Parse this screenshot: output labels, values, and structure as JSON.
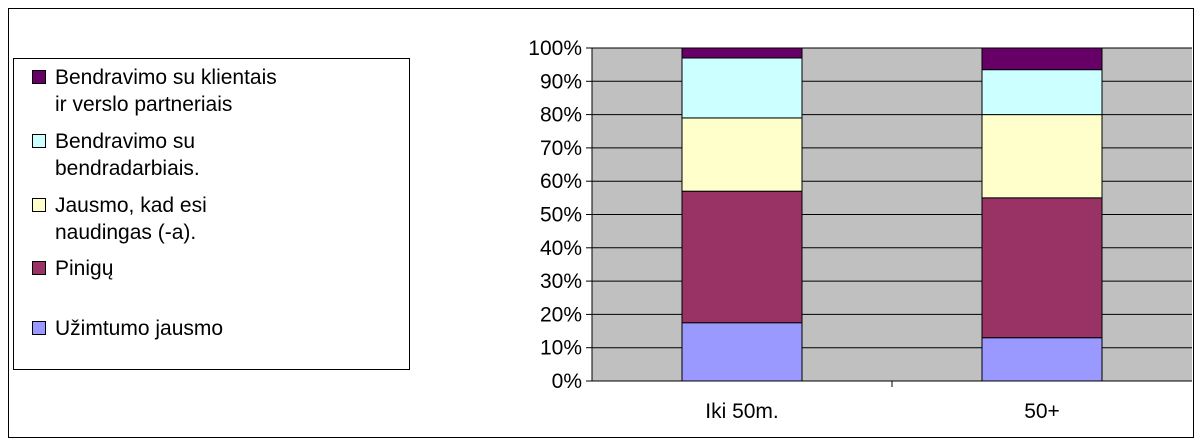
{
  "chart_data": {
    "type": "bar",
    "stacked": true,
    "percent_stacked": true,
    "categories": [
      "Iki 50m.",
      "50+"
    ],
    "series": [
      {
        "name": "Užimtumo jausmo",
        "color": "#9999ff",
        "values": [
          17.5,
          13
        ]
      },
      {
        "name": "Pinigų",
        "color": "#993366",
        "values": [
          39.5,
          42
        ]
      },
      {
        "name": "Jausmo, kad esi\nnaudingas (-a).",
        "color": "#ffffcc",
        "values": [
          22,
          25
        ]
      },
      {
        "name": "Bendravimo su\nbendradarbiais.",
        "color": "#ccffff",
        "values": [
          18,
          13.5
        ]
      },
      {
        "name": "Bendravimo su klientais\nir verslo partneriais",
        "color": "#660066",
        "values": [
          3,
          6.5
        ]
      }
    ],
    "y_ticks": [
      "0%",
      "10%",
      "20%",
      "30%",
      "40%",
      "50%",
      "60%",
      "70%",
      "80%",
      "90%",
      "100%"
    ],
    "ylim": [
      0,
      100
    ],
    "plot_background": "#c0c0c0",
    "gridlines": true,
    "legend_position": "left"
  }
}
